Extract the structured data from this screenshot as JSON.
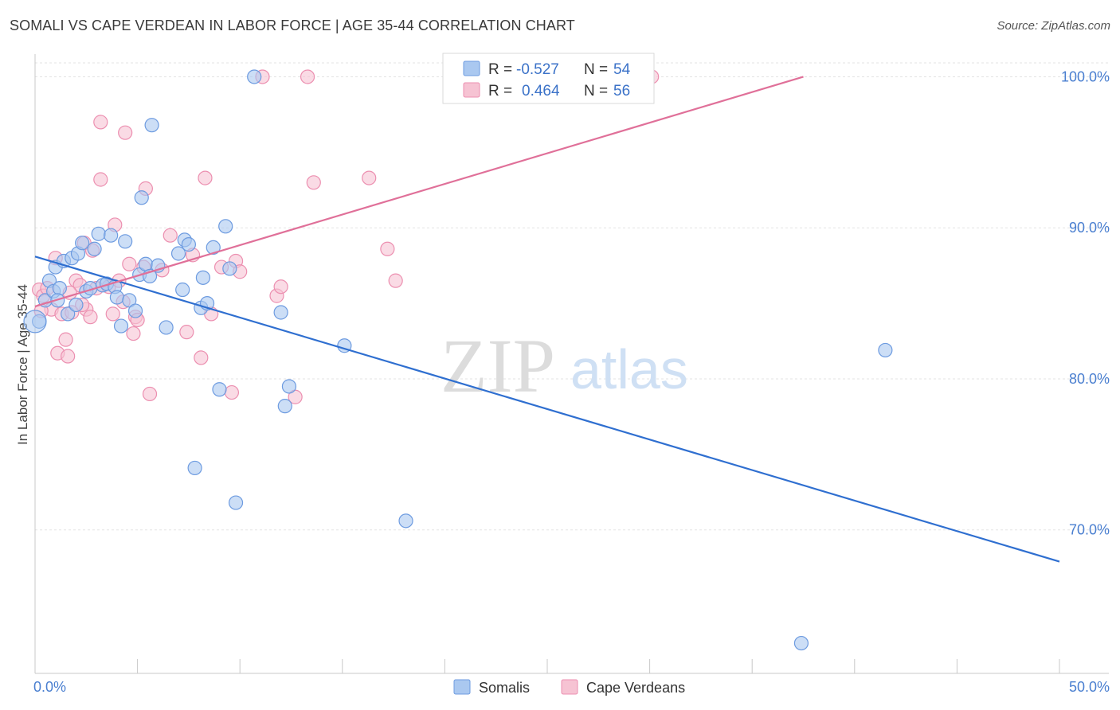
{
  "header": {
    "title": "SOMALI VS CAPE VERDEAN IN LABOR FORCE | AGE 35-44 CORRELATION CHART",
    "source": "Source: ZipAtlas.com"
  },
  "watermark": {
    "zip": "ZIP",
    "atlas": "atlas"
  },
  "colors": {
    "somali_fill": "#aac8f0",
    "somali_stroke": "#6d9be0",
    "somali_line": "#2f6fd0",
    "cape_fill": "#f6c3d3",
    "cape_stroke": "#ec8fb0",
    "cape_line": "#e07099",
    "grid": "#e3e3e3",
    "tick_label": "#4a7fd0"
  },
  "legend": {
    "rows": [
      {
        "r_label": "R =",
        "r_value": "-0.527",
        "n_label": "N =",
        "n_value": "54"
      },
      {
        "r_label": "R =",
        "r_value": "0.464",
        "n_label": "N =",
        "n_value": "56"
      }
    ]
  },
  "bottom_legend": {
    "series": [
      "Somalis",
      "Cape Verdeans"
    ]
  },
  "chart_data": {
    "type": "scatter",
    "title": "SOMALI VS CAPE VERDEAN IN LABOR FORCE | AGE 35-44 CORRELATION CHART",
    "xlabel": "",
    "ylabel": "In Labor Force | Age 35-44",
    "xlim": [
      0,
      50
    ],
    "ylim": [
      60.5,
      101.5
    ],
    "x_tick_labels": [
      {
        "value": 0,
        "label": "0.0%"
      },
      {
        "value": 50,
        "label": "50.0%"
      }
    ],
    "y_tick_labels": [
      {
        "value": 100,
        "label": "100.0%"
      },
      {
        "value": 90,
        "label": "90.0%"
      },
      {
        "value": 80,
        "label": "80.0%"
      },
      {
        "value": 70,
        "label": "70.0%"
      }
    ],
    "grid": true,
    "legend_position": "top-center",
    "series": [
      {
        "name": "Somalis",
        "r": -0.527,
        "n": 54,
        "trend": {
          "x": [
            0,
            50
          ],
          "y": [
            88.1,
            67.9
          ]
        },
        "points": [
          [
            0.2,
            83.8
          ],
          [
            0.5,
            85.2
          ],
          [
            0.7,
            86.5
          ],
          [
            0.9,
            85.8
          ],
          [
            1.0,
            87.4
          ],
          [
            1.2,
            86.0
          ],
          [
            1.4,
            87.8
          ],
          [
            1.6,
            84.3
          ],
          [
            1.8,
            88.0
          ],
          [
            2.0,
            84.9
          ],
          [
            2.1,
            88.3
          ],
          [
            2.3,
            89.0
          ],
          [
            2.5,
            85.8
          ],
          [
            2.7,
            86.0
          ],
          [
            2.9,
            88.6
          ],
          [
            3.1,
            89.6
          ],
          [
            3.3,
            86.2
          ],
          [
            3.5,
            86.3
          ],
          [
            3.7,
            89.5
          ],
          [
            3.9,
            86.1
          ],
          [
            4.0,
            85.4
          ],
          [
            4.2,
            83.5
          ],
          [
            4.4,
            89.1
          ],
          [
            4.6,
            85.2
          ],
          [
            4.9,
            84.5
          ],
          [
            5.1,
            86.9
          ],
          [
            5.2,
            92.0
          ],
          [
            5.4,
            87.6
          ],
          [
            5.6,
            86.8
          ],
          [
            5.7,
            96.8
          ],
          [
            6.0,
            87.5
          ],
          [
            6.4,
            83.4
          ],
          [
            7.0,
            88.3
          ],
          [
            7.2,
            85.9
          ],
          [
            7.3,
            89.2
          ],
          [
            7.5,
            88.9
          ],
          [
            8.1,
            84.7
          ],
          [
            8.2,
            86.7
          ],
          [
            8.4,
            85.0
          ],
          [
            8.7,
            88.7
          ],
          [
            9.0,
            79.3
          ],
          [
            9.3,
            90.1
          ],
          [
            9.5,
            87.3
          ],
          [
            7.8,
            74.1
          ],
          [
            9.8,
            71.8
          ],
          [
            10.7,
            100.0
          ],
          [
            12.0,
            84.4
          ],
          [
            12.2,
            78.2
          ],
          [
            12.4,
            79.5
          ],
          [
            15.1,
            82.2
          ],
          [
            18.1,
            70.6
          ],
          [
            37.4,
            62.5
          ],
          [
            41.5,
            81.9
          ],
          [
            1.1,
            85.2
          ]
        ]
      },
      {
        "name": "Cape Verdeans",
        "r": 0.464,
        "n": 56,
        "trend": {
          "x": [
            0,
            37.5
          ],
          "y": [
            84.8,
            100.0
          ]
        },
        "points": [
          [
            0.2,
            85.9
          ],
          [
            0.4,
            85.5
          ],
          [
            0.6,
            86.0
          ],
          [
            0.8,
            84.6
          ],
          [
            1.0,
            88.0
          ],
          [
            1.1,
            81.7
          ],
          [
            1.3,
            84.3
          ],
          [
            1.5,
            82.6
          ],
          [
            1.6,
            81.5
          ],
          [
            1.8,
            84.4
          ],
          [
            2.0,
            86.5
          ],
          [
            2.2,
            86.2
          ],
          [
            2.4,
            89.0
          ],
          [
            2.5,
            84.6
          ],
          [
            2.7,
            84.1
          ],
          [
            2.8,
            88.5
          ],
          [
            3.0,
            86.0
          ],
          [
            3.2,
            97.0
          ],
          [
            3.2,
            93.2
          ],
          [
            3.6,
            86.1
          ],
          [
            3.8,
            84.3
          ],
          [
            3.9,
            90.2
          ],
          [
            4.1,
            86.5
          ],
          [
            4.3,
            85.1
          ],
          [
            4.4,
            96.3
          ],
          [
            4.6,
            87.6
          ],
          [
            4.8,
            83.0
          ],
          [
            4.9,
            84.1
          ],
          [
            5.0,
            83.9
          ],
          [
            5.3,
            87.4
          ],
          [
            5.4,
            92.6
          ],
          [
            5.6,
            79.0
          ],
          [
            6.2,
            87.2
          ],
          [
            6.6,
            89.5
          ],
          [
            7.4,
            83.1
          ],
          [
            7.7,
            88.2
          ],
          [
            8.1,
            81.4
          ],
          [
            8.3,
            93.3
          ],
          [
            8.6,
            84.3
          ],
          [
            9.1,
            87.4
          ],
          [
            9.6,
            79.1
          ],
          [
            9.8,
            87.8
          ],
          [
            10.0,
            87.1
          ],
          [
            11.1,
            100.0
          ],
          [
            11.8,
            85.5
          ],
          [
            12.0,
            86.1
          ],
          [
            12.7,
            78.8
          ],
          [
            13.3,
            100.0
          ],
          [
            13.6,
            93.0
          ],
          [
            16.3,
            93.3
          ],
          [
            17.2,
            88.6
          ],
          [
            17.6,
            86.5
          ],
          [
            30.1,
            100.0
          ],
          [
            0.3,
            84.5
          ],
          [
            1.7,
            85.7
          ],
          [
            2.3,
            84.9
          ]
        ]
      }
    ]
  }
}
